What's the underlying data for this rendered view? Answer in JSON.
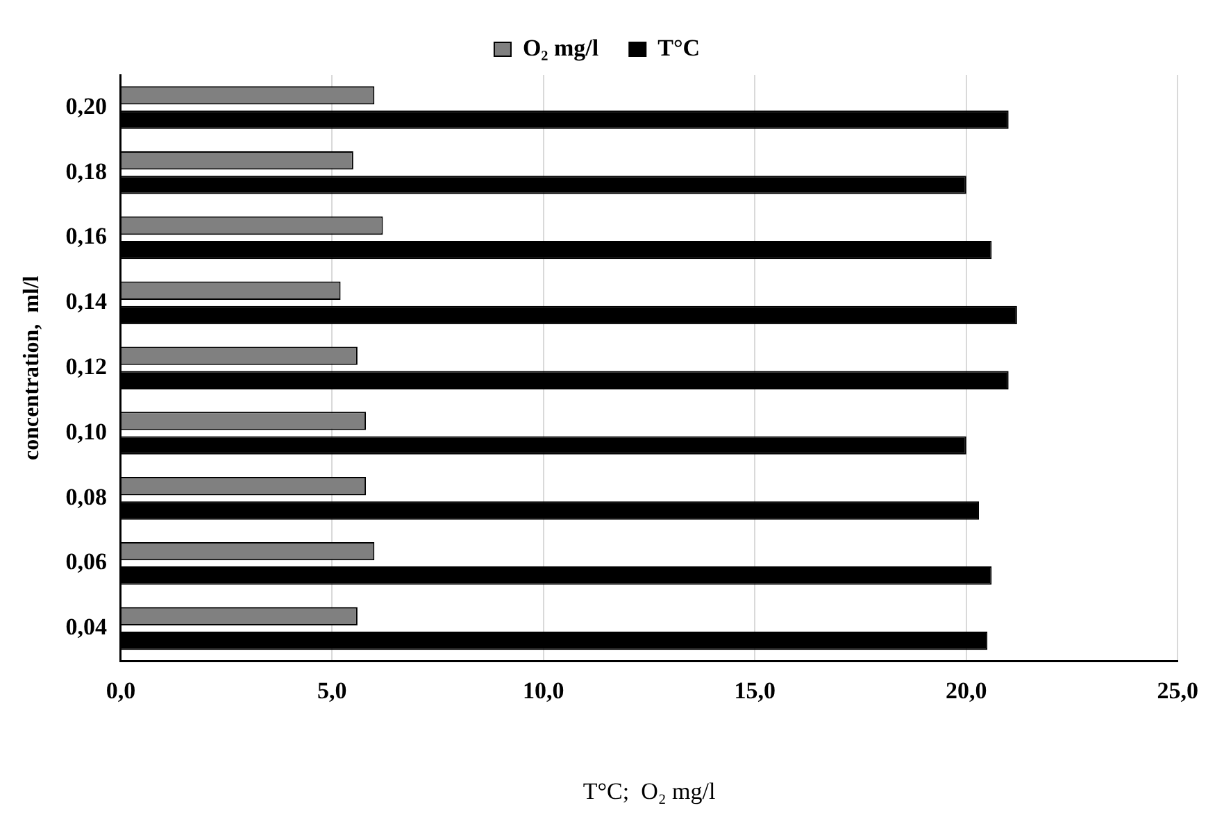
{
  "chart_data": {
    "type": "bar",
    "orientation": "horizontal",
    "xlabel": "T°C;  O₂ mg/l",
    "ylabel": "concentration,  ml/l",
    "categories": [
      "0,20",
      "0,18",
      "0,16",
      "0,14",
      "0,12",
      "0,10",
      "0,08",
      "0,06",
      "0,04"
    ],
    "series": [
      {
        "name": "O₂ mg/l",
        "color": "#808080",
        "values": [
          6.0,
          5.5,
          6.2,
          5.2,
          5.6,
          5.8,
          5.8,
          6.0,
          5.6
        ]
      },
      {
        "name": "T°C",
        "color": "#000000",
        "values": [
          21.0,
          20.0,
          20.6,
          21.2,
          21.0,
          20.0,
          20.3,
          20.6,
          20.5
        ]
      }
    ],
    "xlim": [
      0,
      25
    ],
    "xticks": [
      {
        "value": 0,
        "label": "0,0"
      },
      {
        "value": 5,
        "label": "5,0"
      },
      {
        "value": 10,
        "label": "10,0"
      },
      {
        "value": 15,
        "label": "15,0"
      },
      {
        "value": 20,
        "label": "20,0"
      },
      {
        "value": 25,
        "label": "25,0"
      }
    ],
    "grid": "x",
    "legend": "top"
  }
}
